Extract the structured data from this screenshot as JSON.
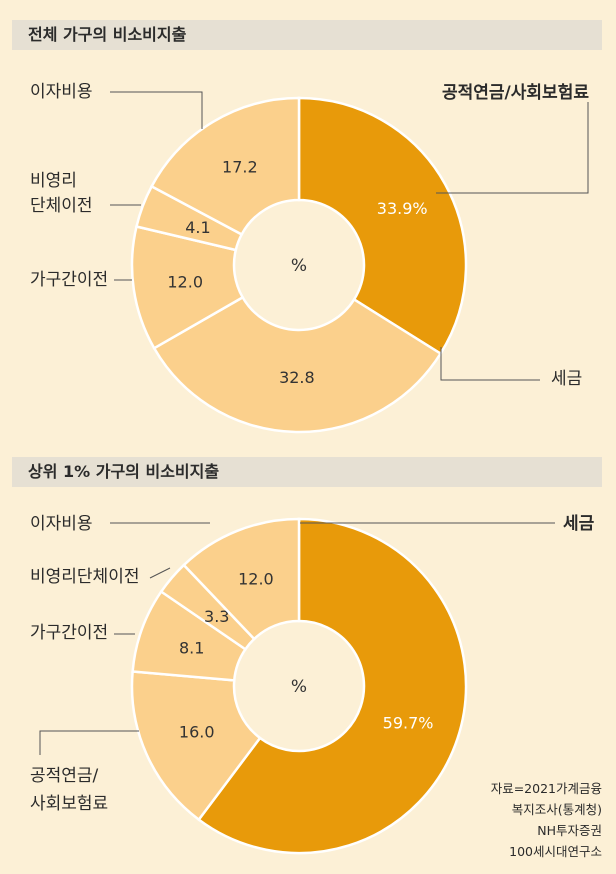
{
  "colors": {
    "accent": "#e89a0a",
    "slice_light": "#fbd08c",
    "line": "#555555",
    "title_bg": "#e6e0d3"
  },
  "chart_data": [
    {
      "type": "pie",
      "title": "전체 가구의 비소비지출",
      "center_label": "%",
      "slices": [
        {
          "label": "공적연금/사회보험료",
          "value": 33.9,
          "value_label": "33.9%",
          "highlight": true
        },
        {
          "label": "세금",
          "value": 32.8,
          "value_label": "32.8",
          "highlight": false
        },
        {
          "label": "가구간이전",
          "value": 12.0,
          "value_label": "12.0",
          "highlight": false
        },
        {
          "label": "비영리 단체이전",
          "label_lines": [
            "비영리",
            "단체이전"
          ],
          "value": 4.1,
          "value_label": "4.1",
          "highlight": false
        },
        {
          "label": "이자비용",
          "value": 17.2,
          "value_label": "17.2",
          "highlight": false
        }
      ]
    },
    {
      "type": "pie",
      "title": "상위 1% 가구의 비소비지출",
      "center_label": "%",
      "slices": [
        {
          "label": "세금",
          "value": 59.7,
          "value_label": "59.7%",
          "highlight": true
        },
        {
          "label": "공적연금/ 사회보험료",
          "label_lines": [
            "공적연금/",
            "사회보험료"
          ],
          "value": 16.0,
          "value_label": "16.0",
          "highlight": false
        },
        {
          "label": "가구간이전",
          "value": 8.1,
          "value_label": "8.1",
          "highlight": false
        },
        {
          "label": "비영리단체이전",
          "value": 3.3,
          "value_label": "3.3",
          "highlight": false
        },
        {
          "label": "이자비용",
          "value": 12.0,
          "value_label": "12.0",
          "highlight": false
        }
      ]
    }
  ],
  "source": [
    "자료=2021가계금융",
    "복지조사(통계청)",
    "NH투자증권",
    "100세시대연구소"
  ]
}
